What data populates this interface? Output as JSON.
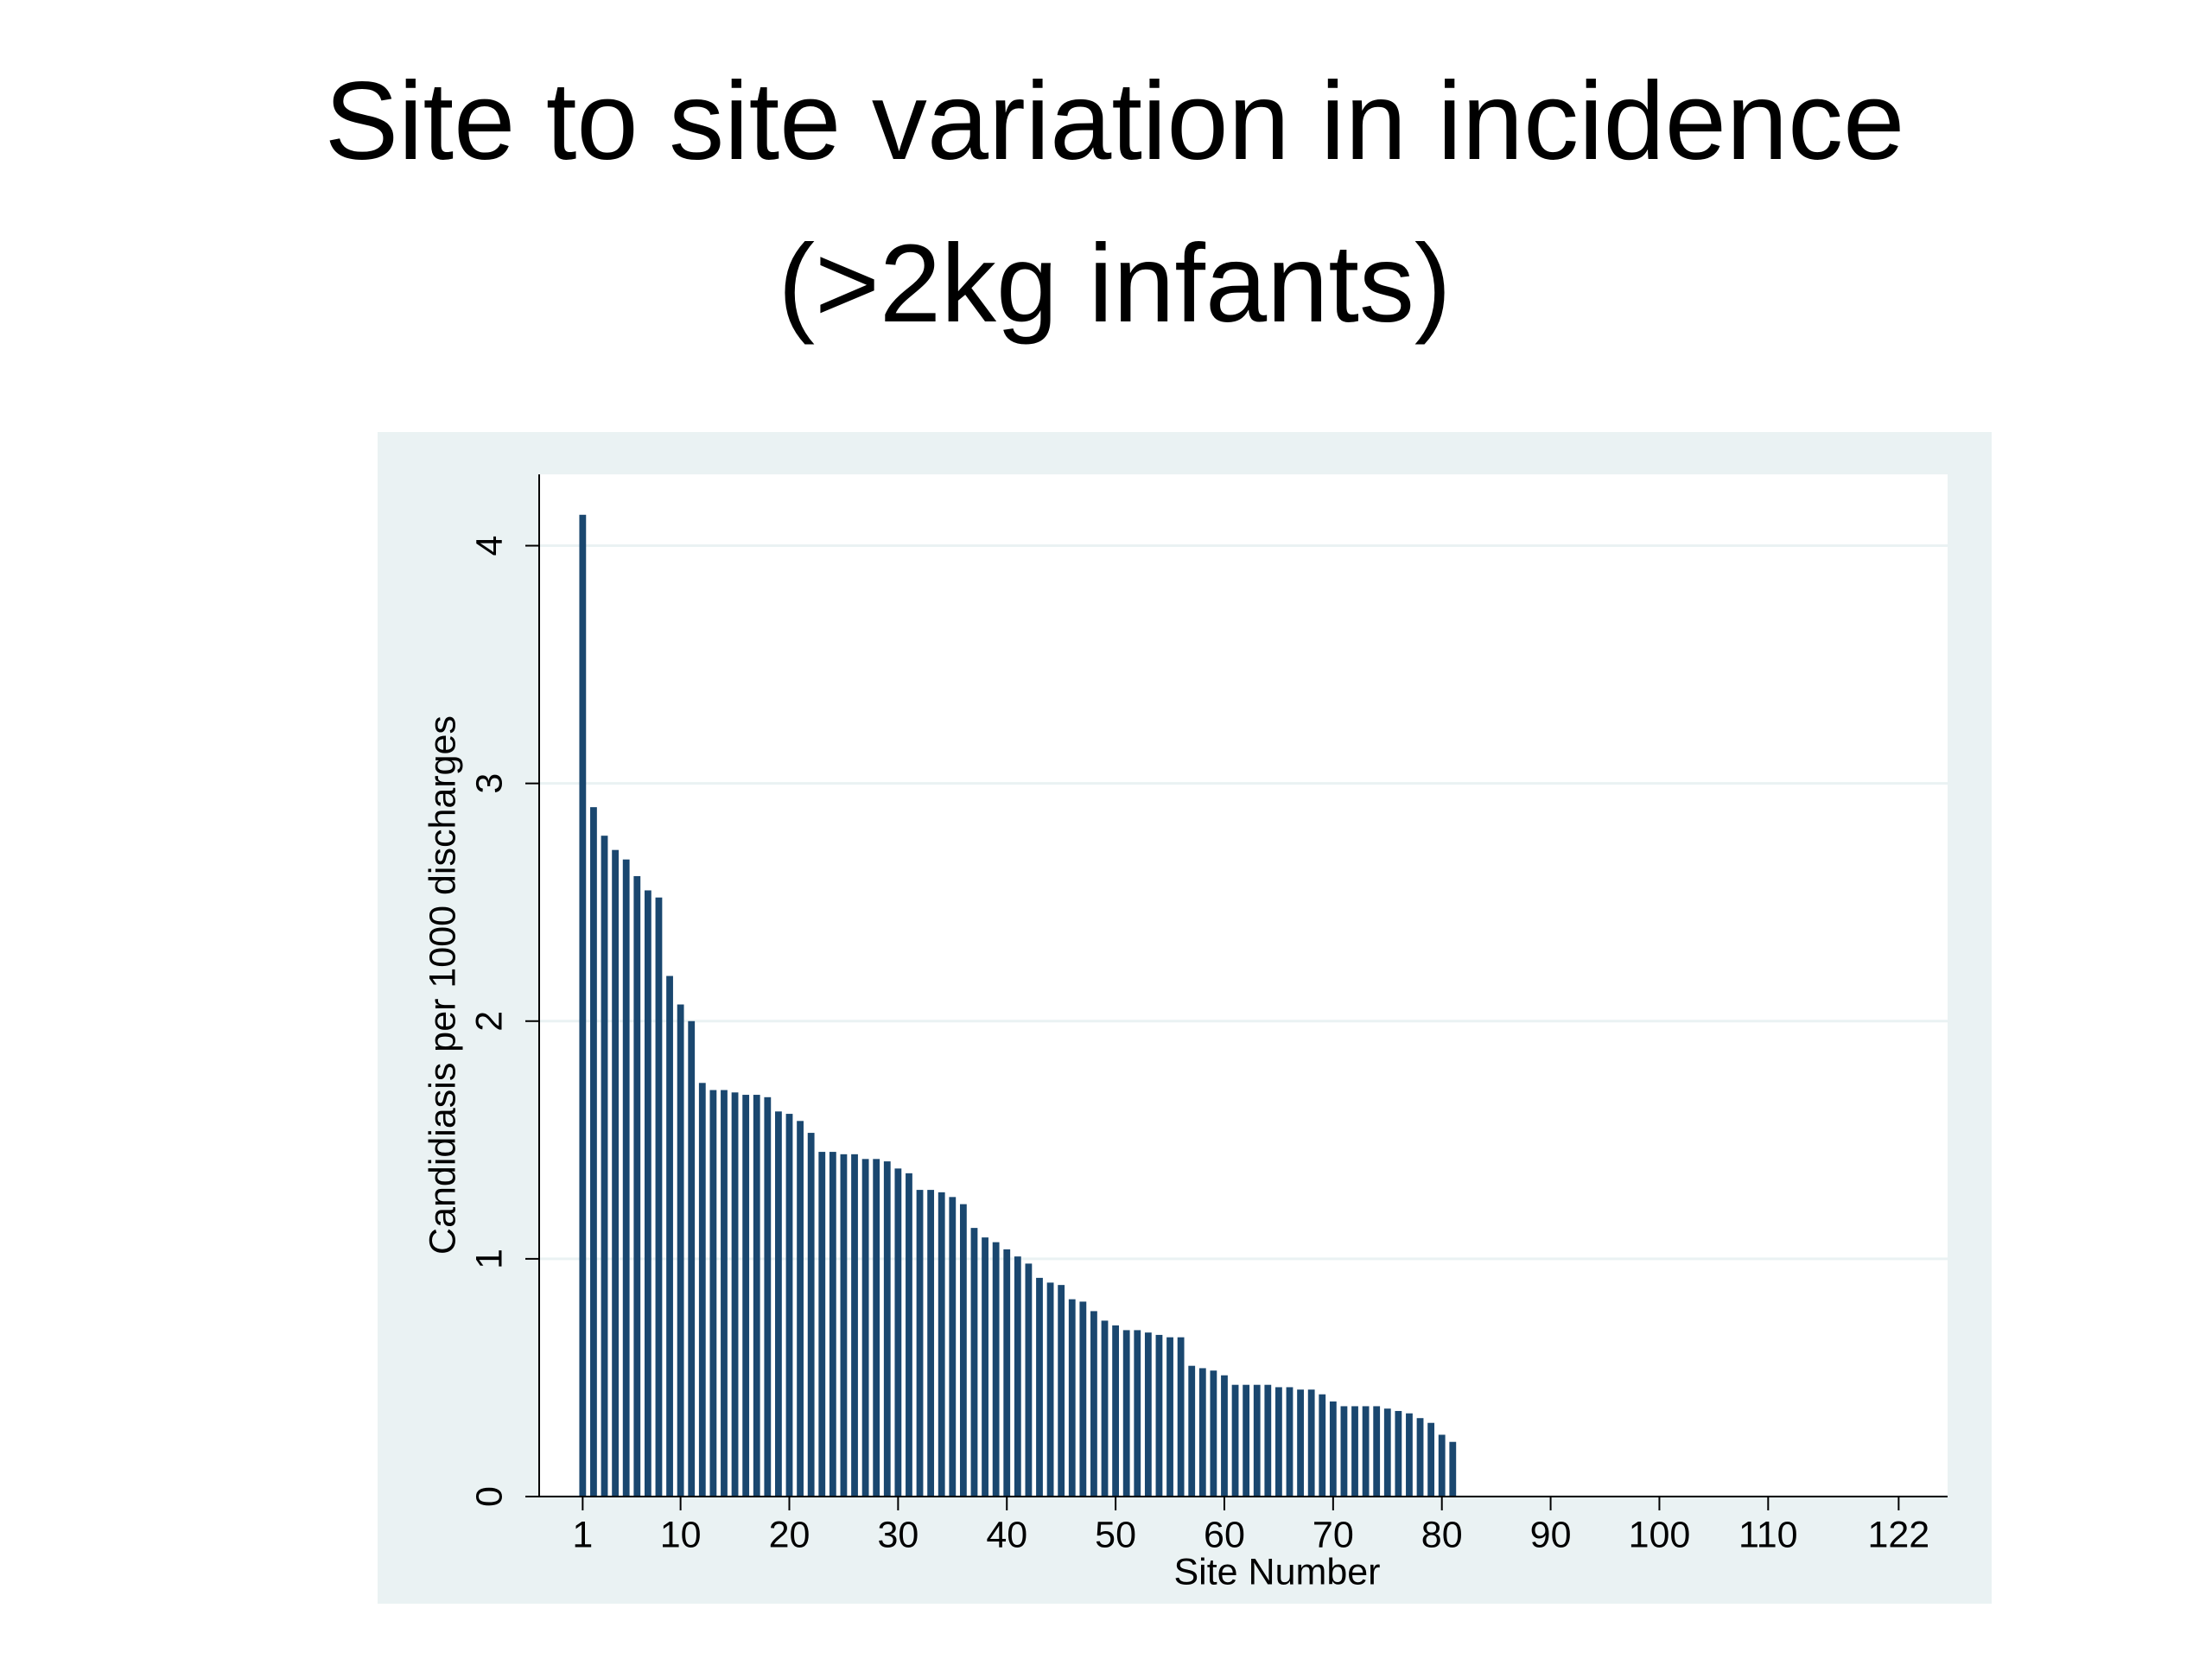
{
  "chart_data": {
    "type": "bar",
    "title": "Site to site variation in incidence",
    "subtitle": "(>2kg infants)",
    "xlabel": "Site Number",
    "ylabel": "Candidiasis per 1000 discharges",
    "color": "#1a476f",
    "x": [
      1,
      2,
      3,
      4,
      5,
      6,
      7,
      8,
      9,
      10,
      11,
      12,
      13,
      14,
      15,
      16,
      17,
      18,
      19,
      20,
      21,
      22,
      23,
      24,
      25,
      26,
      27,
      28,
      29,
      30,
      31,
      32,
      33,
      34,
      35,
      36,
      37,
      38,
      39,
      40,
      41,
      42,
      43,
      44,
      45,
      46,
      47,
      48,
      49,
      50,
      51,
      52,
      53,
      54,
      55,
      56,
      57,
      58,
      59,
      60,
      61,
      62,
      63,
      64,
      65,
      66,
      67,
      68,
      69,
      70,
      71,
      72,
      73,
      74,
      75,
      76,
      77,
      78,
      79,
      80,
      81
    ],
    "values": [
      4.13,
      2.9,
      2.78,
      2.72,
      2.68,
      2.61,
      2.55,
      2.52,
      2.19,
      2.07,
      2.0,
      1.74,
      1.71,
      1.71,
      1.7,
      1.69,
      1.69,
      1.68,
      1.62,
      1.61,
      1.58,
      1.53,
      1.45,
      1.45,
      1.44,
      1.44,
      1.42,
      1.42,
      1.41,
      1.38,
      1.36,
      1.29,
      1.29,
      1.28,
      1.26,
      1.23,
      1.13,
      1.09,
      1.07,
      1.04,
      1.01,
      0.98,
      0.92,
      0.9,
      0.89,
      0.83,
      0.82,
      0.78,
      0.74,
      0.72,
      0.7,
      0.7,
      0.69,
      0.68,
      0.67,
      0.67,
      0.55,
      0.54,
      0.53,
      0.51,
      0.47,
      0.47,
      0.47,
      0.47,
      0.46,
      0.46,
      0.45,
      0.45,
      0.43,
      0.4,
      0.38,
      0.38,
      0.38,
      0.38,
      0.37,
      0.36,
      0.35,
      0.33,
      0.31,
      0.26,
      0.23
    ],
    "xlim": [
      -3,
      126.5
    ],
    "xticks": [
      1,
      10,
      20,
      30,
      40,
      50,
      60,
      70,
      80,
      90,
      100,
      110,
      122
    ],
    "ylim": [
      0,
      4.3
    ],
    "yticks": [
      0,
      1,
      2,
      3,
      4
    ],
    "grid": true
  }
}
